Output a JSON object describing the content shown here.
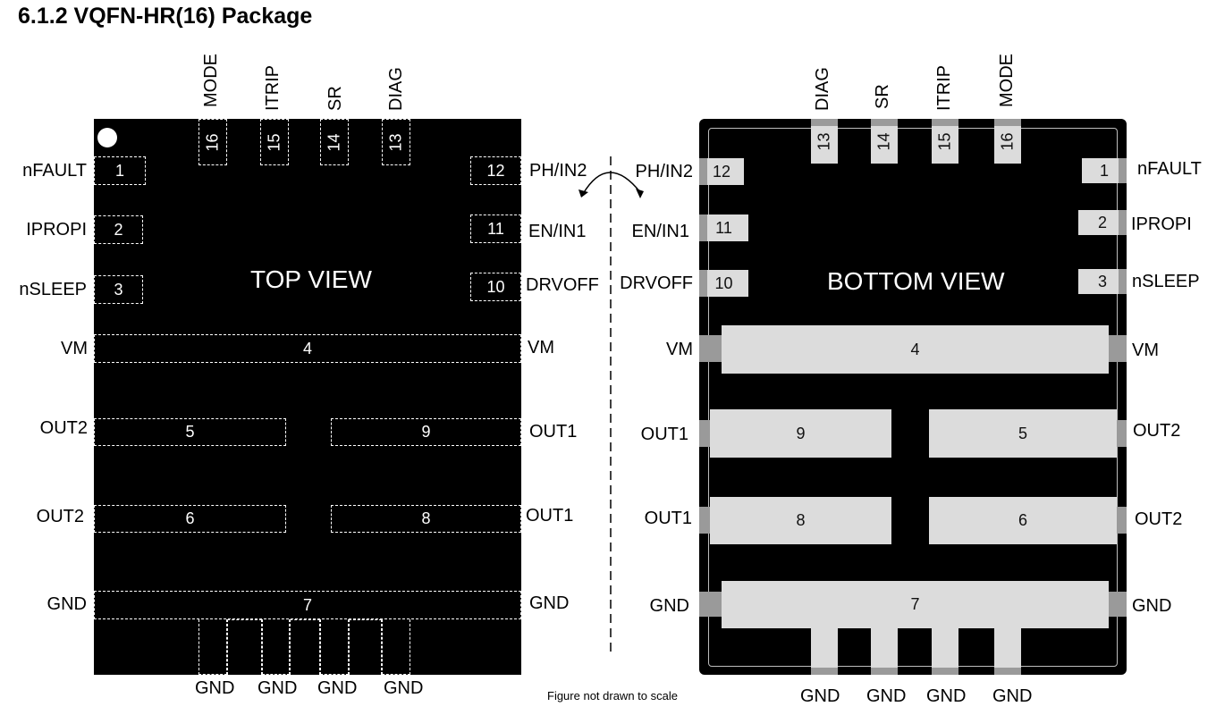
{
  "title": "6.1.2 VQFN-HR(16) Package",
  "note": "Figure not drawn to scale",
  "top_view": {
    "label": "TOP VIEW",
    "top_pins": [
      {
        "num": "16",
        "name": "MODE"
      },
      {
        "num": "15",
        "name": "ITRIP"
      },
      {
        "num": "14",
        "name": "SR"
      },
      {
        "num": "13",
        "name": "DIAG"
      }
    ],
    "left_pins": [
      {
        "num": "1",
        "name": "nFAULT"
      },
      {
        "num": "2",
        "name": "IPROPI"
      },
      {
        "num": "3",
        "name": "nSLEEP"
      }
    ],
    "right_pins": [
      {
        "num": "12",
        "name": "PH/IN2"
      },
      {
        "num": "11",
        "name": "EN/IN1"
      },
      {
        "num": "10",
        "name": "DRVOFF"
      }
    ],
    "pads": [
      {
        "num": "4",
        "left": "VM",
        "right": "VM"
      },
      {
        "num": "5",
        "left": "OUT2"
      },
      {
        "num": "9",
        "right": "OUT1"
      },
      {
        "num": "6",
        "left": "OUT2"
      },
      {
        "num": "8",
        "right": "OUT1"
      },
      {
        "num": "7",
        "left": "GND",
        "right": "GND"
      }
    ],
    "bottom_labels": [
      "GND",
      "GND",
      "GND",
      "GND"
    ]
  },
  "bottom_view": {
    "label": "BOTTOM VIEW",
    "top_pins": [
      {
        "num": "13",
        "name": "DIAG"
      },
      {
        "num": "14",
        "name": "SR"
      },
      {
        "num": "15",
        "name": "ITRIP"
      },
      {
        "num": "16",
        "name": "MODE"
      }
    ],
    "left_pins": [
      {
        "num": "12",
        "name": "PH/IN2"
      },
      {
        "num": "11",
        "name": "EN/IN1"
      },
      {
        "num": "10",
        "name": "DRVOFF"
      }
    ],
    "right_pins": [
      {
        "num": "1",
        "name": "nFAULT"
      },
      {
        "num": "2",
        "name": "IPROPI"
      },
      {
        "num": "3",
        "name": "nSLEEP"
      }
    ],
    "pads": [
      {
        "num": "4",
        "left": "VM",
        "right": "VM"
      },
      {
        "num": "9",
        "left": "OUT1"
      },
      {
        "num": "5",
        "right": "OUT2"
      },
      {
        "num": "8",
        "left": "OUT1"
      },
      {
        "num": "6",
        "right": "OUT2"
      },
      {
        "num": "7",
        "left": "GND",
        "right": "GND"
      }
    ],
    "bottom_labels": [
      "GND",
      "GND",
      "GND",
      "GND"
    ]
  }
}
